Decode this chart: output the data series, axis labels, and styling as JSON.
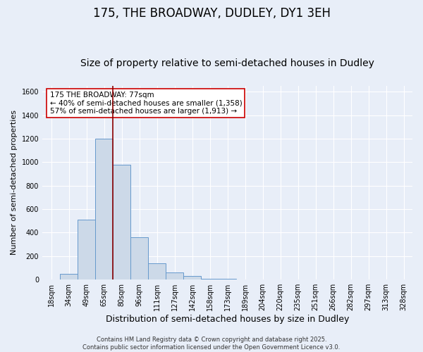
{
  "title": "175, THE BROADWAY, DUDLEY, DY1 3EH",
  "subtitle": "Size of property relative to semi-detached houses in Dudley",
  "xlabel": "Distribution of semi-detached houses by size in Dudley",
  "ylabel_text": "Number of semi-detached properties",
  "categories": [
    "18sqm",
    "34sqm",
    "49sqm",
    "65sqm",
    "80sqm",
    "96sqm",
    "111sqm",
    "127sqm",
    "142sqm",
    "158sqm",
    "173sqm",
    "189sqm",
    "204sqm",
    "220sqm",
    "235sqm",
    "251sqm",
    "266sqm",
    "282sqm",
    "297sqm",
    "313sqm",
    "328sqm"
  ],
  "values": [
    0,
    50,
    510,
    1200,
    975,
    360,
    140,
    60,
    30,
    10,
    5,
    0,
    0,
    0,
    0,
    0,
    0,
    0,
    0,
    0,
    0
  ],
  "bar_color": "#ccd9e8",
  "bar_edge_color": "#6699cc",
  "property_line_color": "#8b0000",
  "property_line_x": 3.5,
  "annotation_text": "175 THE BROADWAY: 77sqm\n← 40% of semi-detached houses are smaller (1,358)\n57% of semi-detached houses are larger (1,913) →",
  "annotation_box_color": "#ffffff",
  "annotation_box_edge": "#cc0000",
  "ylim": [
    0,
    1650
  ],
  "yticks": [
    0,
    200,
    400,
    600,
    800,
    1000,
    1200,
    1400,
    1600
  ],
  "background_color": "#e8eef8",
  "plot_background": "#e8eef8",
  "footer_text": "Contains HM Land Registry data © Crown copyright and database right 2025.\nContains public sector information licensed under the Open Government Licence v3.0.",
  "title_fontsize": 12,
  "subtitle_fontsize": 10,
  "annotation_fontsize": 7.5,
  "ylabel_fontsize": 8,
  "xlabel_fontsize": 9
}
